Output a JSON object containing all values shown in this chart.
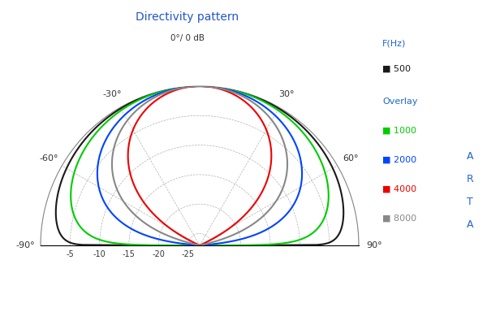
{
  "title": "Directivity pattern",
  "center_label": "0°/ 0 dB",
  "r_ticks": [
    0,
    -5,
    -10,
    -15,
    -20,
    -25
  ],
  "r_min": -27,
  "r_max": 0,
  "background_color": "#ffffff",
  "grid_color": "#aaaaaa",
  "grid_color_solid": "#888888",
  "series": [
    {
      "label": "500",
      "color": "#1a1a1a",
      "cos_n": 0.15
    },
    {
      "label": "1000",
      "color": "#00cc00",
      "cos_n": 0.4
    },
    {
      "label": "2000",
      "color": "#0044ff",
      "cos_n": 1.2
    },
    {
      "label": "4000",
      "color": "#ee0000",
      "cos_n": 3.5
    },
    {
      "label": "8000",
      "color": "#888888",
      "cos_n": 2.0
    }
  ],
  "fig_width": 6.0,
  "fig_height": 4.0,
  "dpi": 100
}
